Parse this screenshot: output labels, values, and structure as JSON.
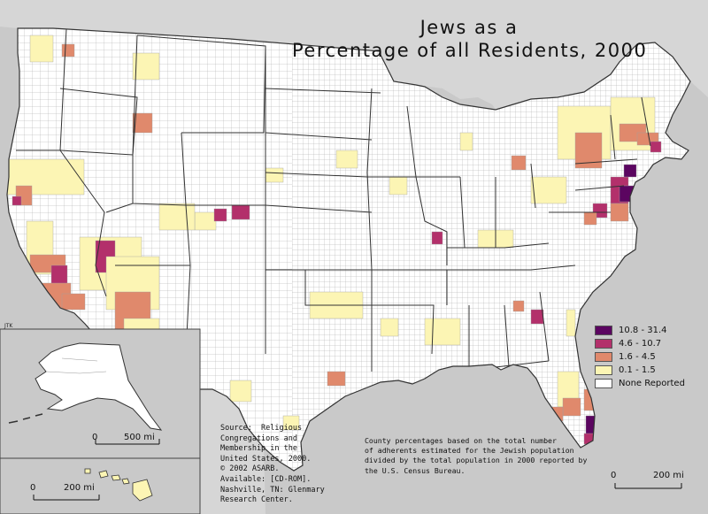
{
  "title": {
    "line1": "Jews as a",
    "line2": "Percentage of all Residents, 2000"
  },
  "credit": "JTK",
  "legend": {
    "items": [
      {
        "label": "10.8 - 31.4",
        "color": "#5b0560"
      },
      {
        "label": "4.6 - 10.7",
        "color": "#b3306b"
      },
      {
        "label": "1.6 - 4.5",
        "color": "#e0896c"
      },
      {
        "label": "0.1 - 1.5",
        "color": "#fcf5b4"
      },
      {
        "label": "None Reported",
        "color": "#ffffff"
      }
    ]
  },
  "source": "Source:  Religious\nCongregations and\nMembership in the\nUnited States, 2000.\n© 2002 ASARB.\nAvailable: [CD-ROM].\nNashville, TN: Glenmary\nResearch Center.",
  "methodology": "County percentages based on the total number\nof adherents estimated for the Jewish population\ndivided by the total population in 2000 reported by\nthe U.S. Census Bureau.",
  "scales": {
    "alaska": {
      "zero": "0",
      "distance": "500 mi"
    },
    "hawaii": {
      "zero": "0",
      "distance": "200 mi"
    },
    "main": {
      "zero": "0",
      "distance": "200 mi"
    }
  },
  "colors": {
    "background": "#c9c9c9",
    "land": "#ffffff",
    "county_border": "#9a9a9a",
    "state_border": "#333333"
  }
}
